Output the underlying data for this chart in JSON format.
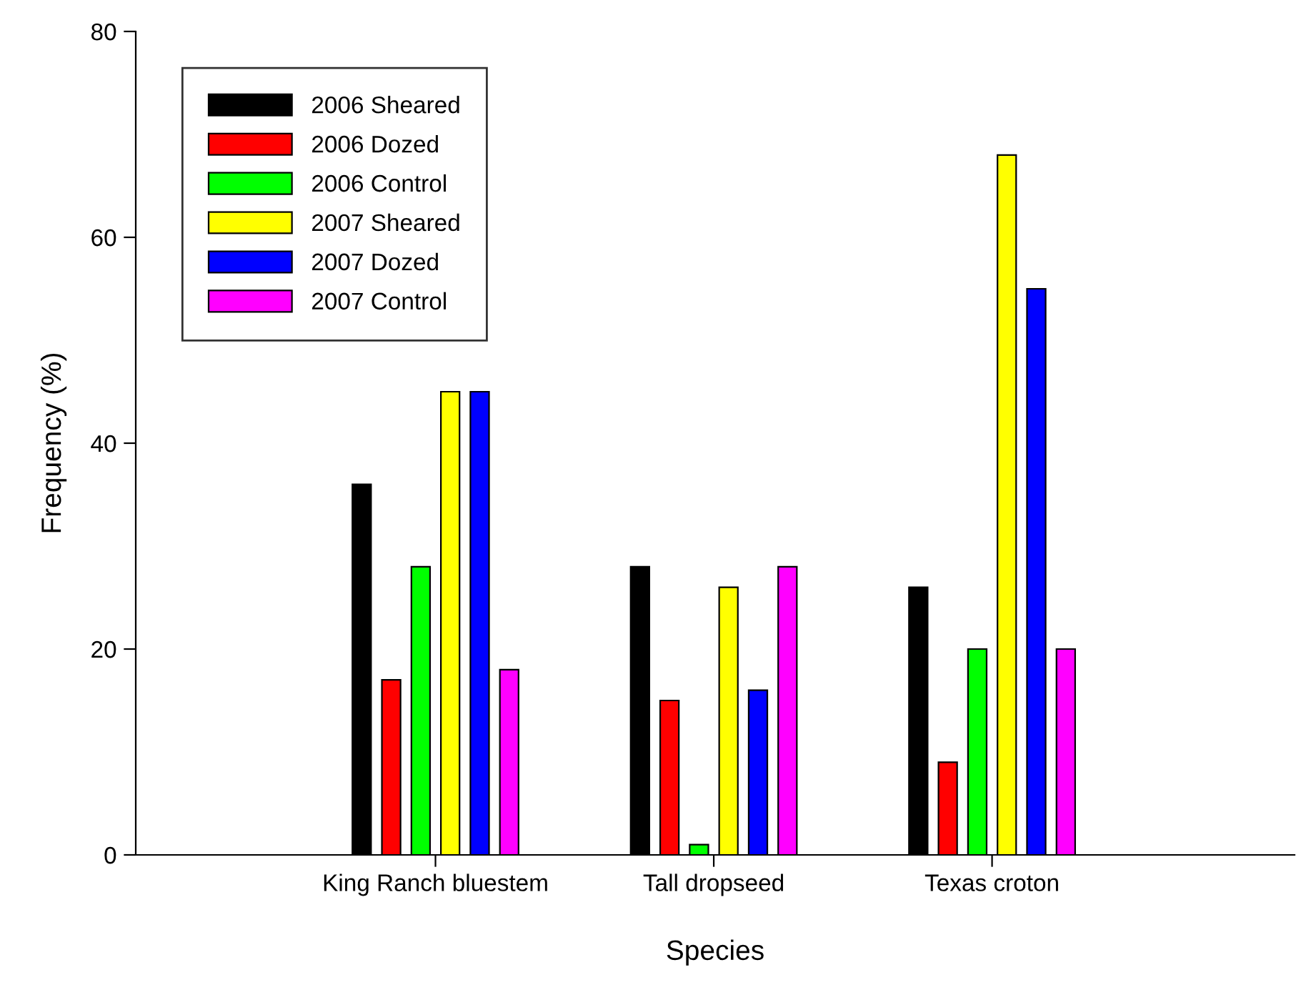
{
  "chart_data": {
    "type": "bar",
    "xlabel": "Species",
    "ylabel": "Frequency (%)",
    "categories": [
      "King Ranch bluestem",
      "Tall dropseed",
      "Texas croton"
    ],
    "series": [
      {
        "name": "2006 Sheared",
        "color": "#000000",
        "values": [
          36,
          28,
          26
        ]
      },
      {
        "name": "2006 Dozed",
        "color": "#ff0000",
        "values": [
          17,
          15,
          9
        ]
      },
      {
        "name": "2006 Control",
        "color": "#00ff00",
        "values": [
          28,
          1,
          20
        ]
      },
      {
        "name": "2007 Sheared",
        "color": "#ffff00",
        "values": [
          45,
          26,
          68
        ]
      },
      {
        "name": "2007 Dozed",
        "color": "#0000ff",
        "values": [
          45,
          16,
          55
        ]
      },
      {
        "name": "2007 Control",
        "color": "#ff00ff",
        "values": [
          18,
          28,
          20
        ]
      }
    ],
    "ylim": [
      0,
      80
    ],
    "yticks": [
      0,
      20,
      40,
      60,
      80
    ],
    "grid": false,
    "legend": "top left"
  }
}
